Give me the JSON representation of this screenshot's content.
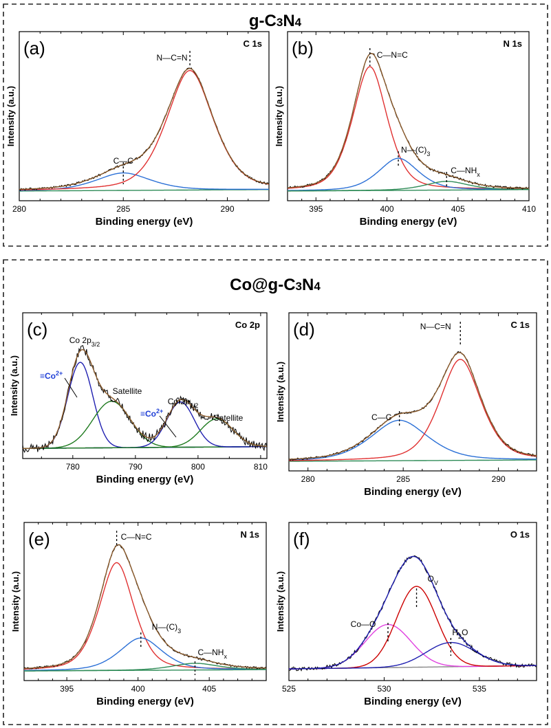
{
  "sections": [
    {
      "title": "g-C3N4",
      "title_parts": [
        "g-C",
        "3",
        "N",
        "4"
      ]
    },
    {
      "title": "Co@g-C3N4",
      "title_parts": [
        "Co@g-C",
        "3",
        "N",
        "4"
      ]
    }
  ],
  "colors": {
    "raw": "#000000",
    "envelope": "#8a5a2b",
    "fit_red": "#e03030",
    "fit_blue": "#2a6fd6",
    "fit_green": "#2e8b57",
    "background": "#9b59b6",
    "fit_magenta": "#e040e0",
    "fit_darkred": "#cc0000",
    "fit_navy": "#1f1fb0",
    "fit_darkgreen": "#1e7a1e"
  },
  "chart_data": [
    {
      "id": "a",
      "type": "line",
      "panel_label": "(a)",
      "spectrum": "C 1s",
      "xlabel": "Binding energy (eV)",
      "ylabel": "Intensity (a.u.)",
      "xlim": [
        280,
        292
      ],
      "xticks": [
        280,
        285,
        290
      ],
      "baseline": 0.02,
      "series": [
        {
          "name": "C—C",
          "center": 285.0,
          "amplitude": 0.12,
          "width": 1.4,
          "shape": "voigt",
          "color": "#2a6fd6"
        },
        {
          "name": "N—C=N",
          "center": 288.2,
          "amplitude": 0.82,
          "width": 1.2,
          "shape": "voigt",
          "color": "#e03030"
        }
      ],
      "annotations": [
        {
          "text": "N—C=N",
          "x": 288.2
        },
        {
          "text": "C—C",
          "x": 285.0
        }
      ]
    },
    {
      "id": "b",
      "type": "line",
      "panel_label": "(b)",
      "spectrum": "N 1s",
      "xlabel": "Binding energy (eV)",
      "ylabel": "Intensity (a.u.)",
      "xlim": [
        393,
        410
      ],
      "xticks": [
        395,
        400,
        405,
        410
      ],
      "baseline": 0.02,
      "series": [
        {
          "name": "C—N=C",
          "center": 398.8,
          "amplitude": 0.85,
          "width": 1.3,
          "shape": "voigt",
          "color": "#e03030"
        },
        {
          "name": "N—(C)3",
          "center": 400.8,
          "amplitude": 0.22,
          "width": 1.5,
          "shape": "voigt",
          "color": "#2a6fd6"
        },
        {
          "name": "C—NHx",
          "center": 404.2,
          "amplitude": 0.06,
          "width": 1.6,
          "shape": "voigt",
          "color": "#2e8b57"
        }
      ],
      "annotations": [
        {
          "text": "C—N=C",
          "x": 398.8
        },
        {
          "text": "N—(C)",
          "sub": "3",
          "x": 400.8
        },
        {
          "text": "C—NH",
          "sub": "x",
          "x": 404.2
        }
      ]
    },
    {
      "id": "c",
      "type": "line",
      "panel_label": "(c)",
      "spectrum": "Co 2p",
      "xlabel": "Binding energy (eV)",
      "ylabel": "Intensity (a.u.)",
      "xlim": [
        772,
        811
      ],
      "xticks": [
        780,
        790,
        800,
        810
      ],
      "baseline": 0.03,
      "series": [
        {
          "name": "≡Co2+ (2p3/2)",
          "center": 781.2,
          "amplitude": 0.7,
          "width": 2.0,
          "shape": "gauss",
          "color": "#1f1fb0"
        },
        {
          "name": "Satellite",
          "center": 786.2,
          "amplitude": 0.38,
          "width": 3.0,
          "shape": "gauss",
          "color": "#1e7a1e"
        },
        {
          "name": "≡Co2+ (2p1/2)",
          "center": 797.2,
          "amplitude": 0.37,
          "width": 2.2,
          "shape": "gauss",
          "color": "#1f1fb0"
        },
        {
          "name": "Satellite",
          "center": 803.0,
          "amplitude": 0.23,
          "width": 2.6,
          "shape": "gauss",
          "color": "#1e7a1e"
        }
      ],
      "annotations": [
        {
          "text": "Co 2p",
          "sub": "3/2"
        },
        {
          "text": "≡Co",
          "sup": "2+"
        },
        {
          "text": "Satellite"
        },
        {
          "text": "Co 2p",
          "sub": "1/2"
        },
        {
          "text": "≡Co",
          "sup": "2+"
        },
        {
          "text": "Satellite"
        }
      ]
    },
    {
      "id": "d",
      "type": "line",
      "panel_label": "(d)",
      "spectrum": "C 1s",
      "xlabel": "Binding energy (eV)",
      "ylabel": "Intensity (a.u.)",
      "xlim": [
        279,
        292
      ],
      "xticks": [
        280,
        285,
        290
      ],
      "baseline": 0.02,
      "series": [
        {
          "name": "C—C",
          "center": 284.8,
          "amplitude": 0.3,
          "width": 1.6,
          "shape": "voigt",
          "color": "#2a6fd6"
        },
        {
          "name": "N—C=N",
          "center": 288.0,
          "amplitude": 0.75,
          "width": 1.15,
          "shape": "voigt",
          "color": "#e03030"
        }
      ],
      "annotations": [
        {
          "text": "N—C=N",
          "x": 288.0
        },
        {
          "text": "C—C",
          "x": 284.8
        }
      ]
    },
    {
      "id": "e",
      "type": "line",
      "panel_label": "(e)",
      "spectrum": "N 1s",
      "xlabel": "Binding energy (eV)",
      "ylabel": "Intensity (a.u.)",
      "xlim": [
        392,
        409
      ],
      "xticks": [
        395,
        400,
        405
      ],
      "baseline": 0.02,
      "series": [
        {
          "name": "C—N=C",
          "center": 398.5,
          "amplitude": 0.8,
          "width": 1.3,
          "shape": "voigt",
          "color": "#e03030"
        },
        {
          "name": "N—(C)3",
          "center": 400.2,
          "amplitude": 0.24,
          "width": 1.6,
          "shape": "voigt",
          "color": "#2a6fd6"
        },
        {
          "name": "C—NHx",
          "center": 404.0,
          "amplitude": 0.05,
          "width": 1.7,
          "shape": "voigt",
          "color": "#2e8b57"
        }
      ],
      "annotations": [
        {
          "text": "C—N=C",
          "x": 398.5
        },
        {
          "text": "N—(C)",
          "sub": "3",
          "x": 400.2
        },
        {
          "text": "C—NH",
          "sub": "x",
          "x": 404.0
        }
      ]
    },
    {
      "id": "f",
      "type": "line",
      "panel_label": "(f)",
      "spectrum": "O 1s",
      "xlabel": "Binding energy (eV)",
      "ylabel": "Intensity (a.u.)",
      "xlim": [
        525,
        538
      ],
      "xticks": [
        525,
        530,
        535
      ],
      "baseline": 0.05,
      "series": [
        {
          "name": "Co—O",
          "center": 530.2,
          "amplitude": 0.32,
          "width": 1.2,
          "shape": "gauss",
          "color": "#e040e0"
        },
        {
          "name": "Ov",
          "center": 531.7,
          "amplitude": 0.6,
          "width": 1.05,
          "shape": "gauss",
          "color": "#cc0000"
        },
        {
          "name": "H2O",
          "center": 533.5,
          "amplitude": 0.18,
          "width": 1.3,
          "shape": "gauss",
          "color": "#1f1fb0"
        }
      ],
      "annotations": [
        {
          "text": "O",
          "sub": "V",
          "x": 531.7
        },
        {
          "text": "Co—O",
          "x": 530.2
        },
        {
          "text": "H",
          "sub": "2",
          "text2": "O",
          "x": 533.5
        }
      ]
    }
  ]
}
